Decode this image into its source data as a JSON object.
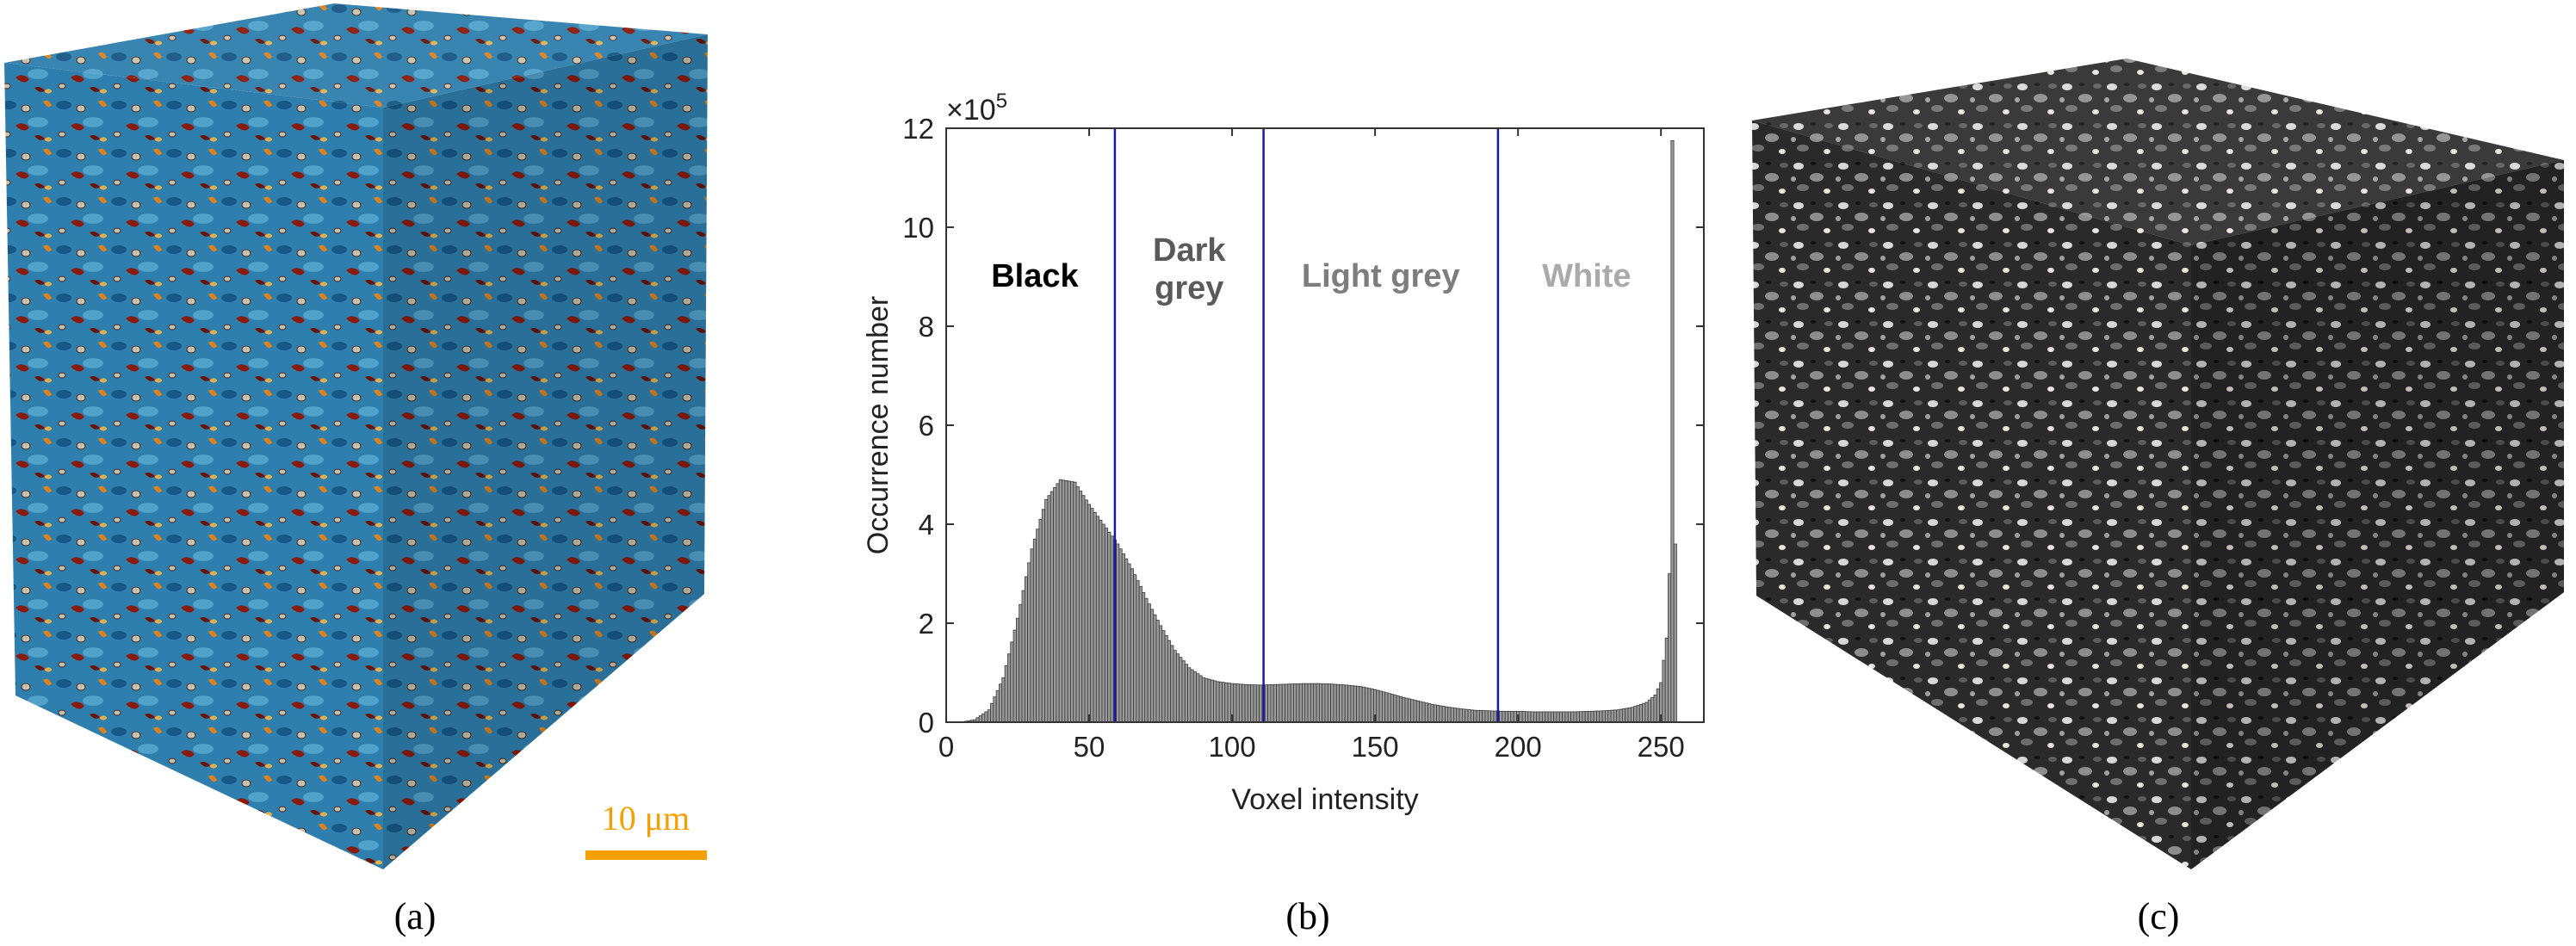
{
  "panels": [
    {
      "label": "(a)",
      "content": "3D microstructure cube (blue/red colour map)"
    },
    {
      "label": "(b)",
      "content": "Histogram of voxel intensity"
    },
    {
      "label": "(c)",
      "content": "3D segmented cube (greyscale phases)"
    }
  ],
  "panel_labels": {
    "a": "(a)",
    "b": "(b)",
    "c": "(c)"
  },
  "scale_bar": {
    "label": "10 μm",
    "color": "#f5a000"
  },
  "colors": {
    "cube_a_base": "#2f7fae",
    "cube_a_dark": "#0f4a78",
    "cube_a_red": "#8a1a0a",
    "cube_a_orange": "#d9821e",
    "cube_a_pore": "#c9c1ad",
    "cube_c_base": "#2a2a2a",
    "bar_fill": "#9a9a9a",
    "threshold_line": "#1a1aa8",
    "label_black": "#000000",
    "label_dark_grey": "#5a5a5a",
    "label_light_grey": "#7d7d7d",
    "label_white": "#aaaaaa"
  },
  "chart_data": {
    "type": "bar",
    "title": "",
    "xlabel": "Voxel intensity",
    "ylabel": "Occurrence number",
    "y_multiplier_label": "×10",
    "y_multiplier_exponent": "5",
    "xlim": [
      0,
      265
    ],
    "ylim": [
      0,
      12
    ],
    "xticks": [
      0,
      50,
      100,
      150,
      200,
      250
    ],
    "yticks": [
      0,
      2,
      4,
      6,
      8,
      10,
      12
    ],
    "grid": false,
    "thresholds": [
      59,
      111,
      193
    ],
    "regions": [
      {
        "label": "Black",
        "color": "#000000",
        "x_center": 31
      },
      {
        "label": "Dark\ngrey",
        "color": "#5a5a5a",
        "x_center": 85
      },
      {
        "label": "Light grey",
        "color": "#7d7d7d",
        "x_center": 152
      },
      {
        "label": "White",
        "color": "#aaaaaa",
        "x_center": 224
      }
    ],
    "x": [
      0,
      5,
      10,
      15,
      20,
      25,
      30,
      35,
      40,
      45,
      50,
      55,
      60,
      65,
      70,
      75,
      80,
      85,
      90,
      95,
      100,
      105,
      110,
      115,
      120,
      125,
      130,
      135,
      140,
      145,
      150,
      155,
      160,
      165,
      170,
      175,
      180,
      185,
      190,
      195,
      200,
      205,
      210,
      215,
      220,
      225,
      230,
      235,
      240,
      245,
      248,
      250,
      252,
      253,
      254,
      255
    ],
    "values": [
      0.0,
      0.0,
      0.05,
      0.25,
      0.9,
      2.1,
      3.5,
      4.5,
      4.9,
      4.85,
      4.4,
      4.0,
      3.6,
      3.1,
      2.5,
      1.95,
      1.45,
      1.1,
      0.9,
      0.82,
      0.78,
      0.76,
      0.75,
      0.76,
      0.77,
      0.78,
      0.78,
      0.77,
      0.75,
      0.72,
      0.66,
      0.58,
      0.5,
      0.43,
      0.36,
      0.31,
      0.27,
      0.24,
      0.23,
      0.22,
      0.22,
      0.21,
      0.21,
      0.21,
      0.21,
      0.22,
      0.23,
      0.25,
      0.3,
      0.4,
      0.55,
      0.8,
      1.7,
      3.0,
      11.75,
      3.6
    ]
  }
}
